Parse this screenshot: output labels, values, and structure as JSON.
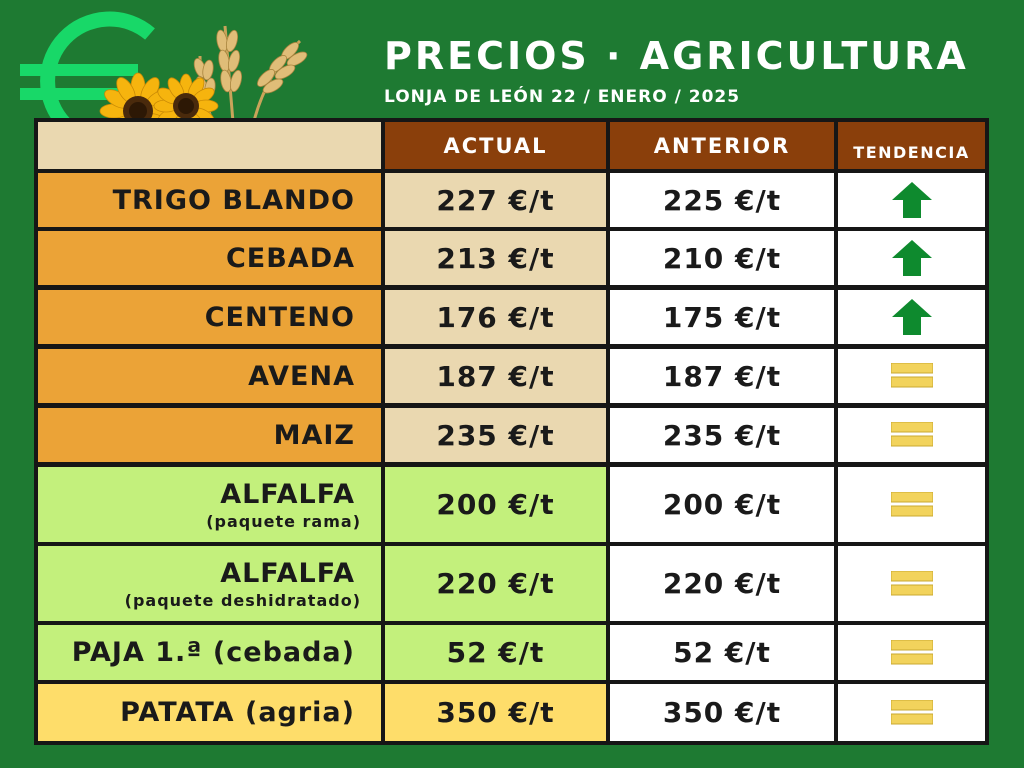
{
  "header": {
    "title": "PRECIOS · AGRICULTURA",
    "subtitle": "LONJA DE LEÓN  22 / ENERO / 2025"
  },
  "logo": {
    "icon": "euro-sign-icon"
  },
  "colors": {
    "background": "#1e7a32",
    "header_cell": "#8a3f0b",
    "cereal_name": "#eba337",
    "cereal_actual": "#ead8b0",
    "forage": "#c3f07c",
    "potato": "#fedd6a",
    "trend_up": "#0e8a2e",
    "trend_equal": "#f2d35c"
  },
  "table": {
    "headers": {
      "actual": "ACTUAL",
      "anterior": "ANTERIOR",
      "tendencia": "TENDENCIA"
    },
    "rows": [
      {
        "name": "TRIGO BLANDO",
        "sub": "",
        "actual": "227 €/t",
        "anterior": "225 €/t",
        "trend": "up"
      },
      {
        "name": "CEBADA",
        "sub": "",
        "actual": "213 €/t",
        "anterior": "210 €/t",
        "trend": "up"
      },
      {
        "name": "CENTENO",
        "sub": "",
        "actual": "176 €/t",
        "anterior": "175 €/t",
        "trend": "up"
      },
      {
        "name": "AVENA",
        "sub": "",
        "actual": "187 €/t",
        "anterior": "187 €/t",
        "trend": "equal"
      },
      {
        "name": "MAIZ",
        "sub": "",
        "actual": "235 €/t",
        "anterior": "235 €/t",
        "trend": "equal"
      },
      {
        "name": "ALFALFA",
        "sub": "(paquete rama)",
        "actual": "200 €/t",
        "anterior": "200 €/t",
        "trend": "equal"
      },
      {
        "name": "ALFALFA",
        "sub": "(paquete deshidratado)",
        "actual": "220 €/t",
        "anterior": "220 €/t",
        "trend": "equal"
      },
      {
        "name": "PAJA 1.ª (cebada)",
        "sub": "",
        "actual": "52 €/t",
        "anterior": "52 €/t",
        "trend": "equal"
      },
      {
        "name": "PATATA (agria)",
        "sub": "",
        "actual": "350 €/t",
        "anterior": "350 €/t",
        "trend": "equal"
      }
    ]
  }
}
